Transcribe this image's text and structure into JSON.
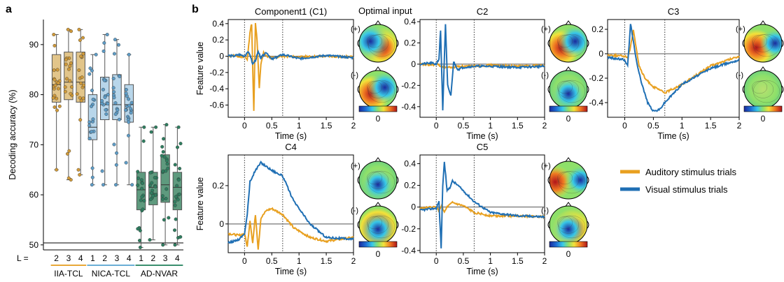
{
  "panel_a": {
    "letter": "a",
    "ylabel": "Decoding accuracy (%)",
    "yticks": [
      "50",
      "60",
      "70",
      "80",
      "90"
    ],
    "l_prefix": "L = ",
    "groups": [
      {
        "name": "IIA-TCL",
        "color": "#e8a838",
        "levels": [
          "2",
          "3",
          "4"
        ]
      },
      {
        "name": "NICA-TCL",
        "color": "#6aaed6",
        "levels": [
          "1",
          "2",
          "3",
          "4"
        ]
      },
      {
        "name": "AD-NVAR",
        "color": "#3a8f6e",
        "levels": [
          "1",
          "2",
          "3",
          "4"
        ]
      }
    ]
  },
  "panel_b": {
    "letter": "b",
    "optimal_input_label": "Optimal input",
    "ylabel": "Feature value",
    "xlabel": "Time (s)",
    "colorbar_label": "0",
    "sign_pos": "(+)",
    "sign_neg": "(-)",
    "legend": [
      {
        "label": "Auditory stimulus trials",
        "color": "#e8a020"
      },
      {
        "label": "Visual stimulus trials",
        "color": "#1f6fb4"
      }
    ]
  },
  "chart_data": [
    {
      "type": "box",
      "ylabel": "Decoding accuracy (%)",
      "ylim": [
        49,
        95
      ],
      "chance_line": 50.4,
      "boxes": [
        {
          "group": "IIA-TCL",
          "L": 2,
          "q1": 78.5,
          "median": 82,
          "q3": 88,
          "min": 65,
          "max": 92
        },
        {
          "group": "IIA-TCL",
          "L": 3,
          "q1": 79,
          "median": 82.5,
          "q3": 88.5,
          "min": 63,
          "max": 93
        },
        {
          "group": "IIA-TCL",
          "L": 4,
          "q1": 78.5,
          "median": 82.5,
          "q3": 88.5,
          "min": 64,
          "max": 93
        },
        {
          "group": "NICA-TCL",
          "L": 1,
          "q1": 71,
          "median": 73.5,
          "q3": 80,
          "min": 62,
          "max": 88
        },
        {
          "group": "NICA-TCL",
          "L": 2,
          "q1": 75,
          "median": 78,
          "q3": 83.5,
          "min": 62,
          "max": 92
        },
        {
          "group": "NICA-TCL",
          "L": 3,
          "q1": 75,
          "median": 78,
          "q3": 84,
          "min": 62,
          "max": 91
        },
        {
          "group": "NICA-TCL",
          "L": 4,
          "q1": 74.5,
          "median": 78,
          "q3": 82,
          "min": 62,
          "max": 88
        },
        {
          "group": "AD-NVAR",
          "L": 1,
          "q1": 57,
          "median": 61,
          "q3": 64.5,
          "min": 49.5,
          "max": 73.5
        },
        {
          "group": "AD-NVAR",
          "L": 2,
          "q1": 58,
          "median": 61.5,
          "q3": 64.5,
          "min": 51,
          "max": 73.5
        },
        {
          "group": "AD-NVAR",
          "L": 3,
          "q1": 58.5,
          "median": 62,
          "q3": 68,
          "min": 50,
          "max": 74
        },
        {
          "group": "AD-NVAR",
          "L": 4,
          "q1": 57,
          "median": 61.5,
          "q3": 64.5,
          "min": 50,
          "max": 73.5
        }
      ]
    },
    {
      "type": "line",
      "title": "Component1 (C1)",
      "xlabel": "Time (s)",
      "ylabel": "Feature value",
      "xlim": [
        -0.3,
        2
      ],
      "ylim": [
        -0.75,
        0.45
      ],
      "xticks": [
        "0",
        "0.5",
        "1",
        "1.5",
        "2"
      ],
      "yticks": [
        "-0.6",
        "-0.4",
        "-0.2",
        "0",
        "0.2",
        "0.4"
      ],
      "ytick_values": [
        -0.6,
        -0.4,
        -0.2,
        0,
        0.2,
        0.4
      ],
      "vlines": [
        0,
        0.7
      ],
      "series": [
        {
          "name": "Auditory stimulus trials",
          "x": [
            -0.3,
            -0.2,
            -0.1,
            0,
            0.05,
            0.1,
            0.13,
            0.17,
            0.2,
            0.23,
            0.27,
            0.3,
            0.35,
            0.4,
            0.5,
            0.7,
            1,
            1.5,
            2
          ],
          "y": [
            0,
            0.01,
            -0.01,
            0,
            -0.05,
            0.3,
            0.4,
            -0.68,
            0.4,
            0.2,
            -0.4,
            -0.1,
            0.05,
            0,
            -0.02,
            0,
            -0.01,
            0,
            -0.01
          ]
        },
        {
          "name": "Visual stimulus trials",
          "x": [
            -0.3,
            -0.2,
            -0.1,
            0,
            0.05,
            0.1,
            0.15,
            0.2,
            0.25,
            0.3,
            0.4,
            0.5,
            0.7,
            1,
            1.5,
            2
          ],
          "y": [
            0.01,
            0,
            0.02,
            0,
            0.05,
            0.02,
            -0.1,
            -0.05,
            0.05,
            -0.02,
            0.05,
            -0.04,
            0.02,
            -0.03,
            0.01,
            -0.02
          ]
        }
      ]
    },
    {
      "type": "line",
      "title": "C2",
      "xlabel": "Time (s)",
      "ylabel": "",
      "xlim": [
        -0.3,
        2
      ],
      "ylim": [
        -0.5,
        0.42
      ],
      "xticks": [
        "0",
        "0.5",
        "1",
        "1.5",
        "2"
      ],
      "yticks": [
        "-0.4",
        "-0.2",
        "0",
        "0.2",
        "0.4"
      ],
      "ytick_values": [
        -0.4,
        -0.2,
        0,
        0.2,
        0.4
      ],
      "vlines": [
        0,
        0.7
      ],
      "series": [
        {
          "name": "Auditory stimulus trials",
          "x": [
            -0.3,
            -0.1,
            0,
            0.1,
            0.2,
            0.3,
            0.4,
            0.6,
            1,
            1.5,
            2
          ],
          "y": [
            0,
            -0.01,
            0,
            -0.02,
            -0.03,
            -0.03,
            -0.02,
            -0.02,
            -0.01,
            -0.02,
            -0.01
          ]
        },
        {
          "name": "Visual stimulus trials",
          "x": [
            -0.3,
            -0.1,
            0,
            0.05,
            0.08,
            0.12,
            0.17,
            0.21,
            0.27,
            0.32,
            0.4,
            0.5,
            0.7,
            1,
            1.5,
            2
          ],
          "y": [
            0,
            0.01,
            0,
            0.05,
            0.32,
            -0.43,
            0.37,
            -0.2,
            -0.3,
            0.02,
            -0.05,
            -0.03,
            -0.02,
            -0.02,
            -0.03,
            -0.02
          ]
        }
      ]
    },
    {
      "type": "line",
      "title": "C3",
      "xlabel": "Time (s)",
      "ylabel": "",
      "xlim": [
        -0.3,
        2
      ],
      "ylim": [
        -0.52,
        0.28
      ],
      "xticks": [
        "0",
        "0.5",
        "1",
        "1.5",
        "2"
      ],
      "yticks": [
        "-0.4",
        "-0.2",
        "0",
        "0.2"
      ],
      "ytick_values": [
        -0.4,
        -0.2,
        0,
        0.2
      ],
      "vlines": [
        0,
        0.7
      ],
      "series": [
        {
          "name": "Auditory stimulus trials",
          "x": [
            -0.3,
            0,
            0.05,
            0.1,
            0.15,
            0.2,
            0.25,
            0.35,
            0.5,
            0.7,
            1,
            1.5,
            2
          ],
          "y": [
            -0.01,
            -0.02,
            -0.03,
            0.05,
            0.2,
            0.05,
            -0.1,
            -0.2,
            -0.27,
            -0.32,
            -0.25,
            -0.1,
            -0.02
          ]
        },
        {
          "name": "Visual stimulus trials",
          "x": [
            -0.3,
            0,
            0.05,
            0.1,
            0.12,
            0.15,
            0.2,
            0.3,
            0.4,
            0.5,
            0.6,
            0.7,
            1,
            1.5,
            2
          ],
          "y": [
            -0.03,
            -0.05,
            -0.1,
            0.24,
            0.2,
            0.1,
            -0.05,
            -0.25,
            -0.4,
            -0.47,
            -0.46,
            -0.4,
            -0.25,
            -0.12,
            -0.05
          ]
        }
      ]
    },
    {
      "type": "line",
      "title": "C4",
      "xlabel": "Time (s)",
      "ylabel": "Feature value",
      "xlim": [
        -0.3,
        2
      ],
      "ylim": [
        -0.15,
        0.36
      ],
      "xticks": [
        "0",
        "0.5",
        "1",
        "1.5",
        "2"
      ],
      "yticks": [
        "0",
        "0.2"
      ],
      "ytick_values": [
        0,
        0.2
      ],
      "vlines": [
        0,
        0.7
      ],
      "series": [
        {
          "name": "Auditory stimulus trials",
          "x": [
            -0.3,
            -0.1,
            0,
            0.05,
            0.1,
            0.15,
            0.2,
            0.25,
            0.3,
            0.4,
            0.5,
            0.7,
            0.9,
            1.2,
            1.5,
            2
          ],
          "y": [
            -0.05,
            -0.06,
            -0.05,
            -0.12,
            0.02,
            -0.1,
            0.05,
            -0.13,
            0.03,
            0.07,
            0.08,
            0.05,
            -0.02,
            -0.07,
            -0.09,
            -0.07
          ]
        },
        {
          "name": "Visual stimulus trials",
          "x": [
            -0.3,
            -0.1,
            0,
            0.05,
            0.1,
            0.2,
            0.3,
            0.4,
            0.5,
            0.7,
            0.9,
            1.2,
            1.5,
            2
          ],
          "y": [
            -0.1,
            -0.08,
            -0.05,
            0.05,
            0.22,
            0.28,
            0.32,
            0.3,
            0.28,
            0.25,
            0.12,
            0,
            -0.07,
            -0.08
          ]
        }
      ]
    },
    {
      "type": "line",
      "title": "C5",
      "xlabel": "Time (s)",
      "ylabel": "",
      "xlim": [
        -0.3,
        2
      ],
      "ylim": [
        -0.42,
        0.48
      ],
      "xticks": [
        "0",
        "0.5",
        "1",
        "1.5",
        "2"
      ],
      "yticks": [
        "-0.4",
        "-0.2",
        "0",
        "0.2",
        "0.4"
      ],
      "ytick_values": [
        -0.4,
        -0.2,
        0,
        0.2,
        0.4
      ],
      "vlines": [
        0,
        0.7
      ],
      "series": [
        {
          "name": "Auditory stimulus trials",
          "x": [
            -0.3,
            0,
            0.05,
            0.1,
            0.15,
            0.2,
            0.3,
            0.5,
            0.7,
            1,
            1.5,
            2
          ],
          "y": [
            -0.01,
            0,
            -0.04,
            0.02,
            -0.05,
            0,
            0.04,
            0.01,
            -0.05,
            -0.08,
            -0.08,
            -0.09
          ]
        },
        {
          "name": "Visual stimulus trials",
          "x": [
            -0.3,
            0,
            0.05,
            0.09,
            0.12,
            0.15,
            0.2,
            0.25,
            0.3,
            0.4,
            0.6,
            0.7,
            1,
            1.5,
            2
          ],
          "y": [
            -0.03,
            -0.01,
            0.05,
            -0.38,
            0.2,
            0.42,
            0.15,
            0.18,
            0.24,
            0.2,
            0.1,
            0.05,
            -0.05,
            -0.08,
            -0.09
          ]
        }
      ]
    }
  ]
}
